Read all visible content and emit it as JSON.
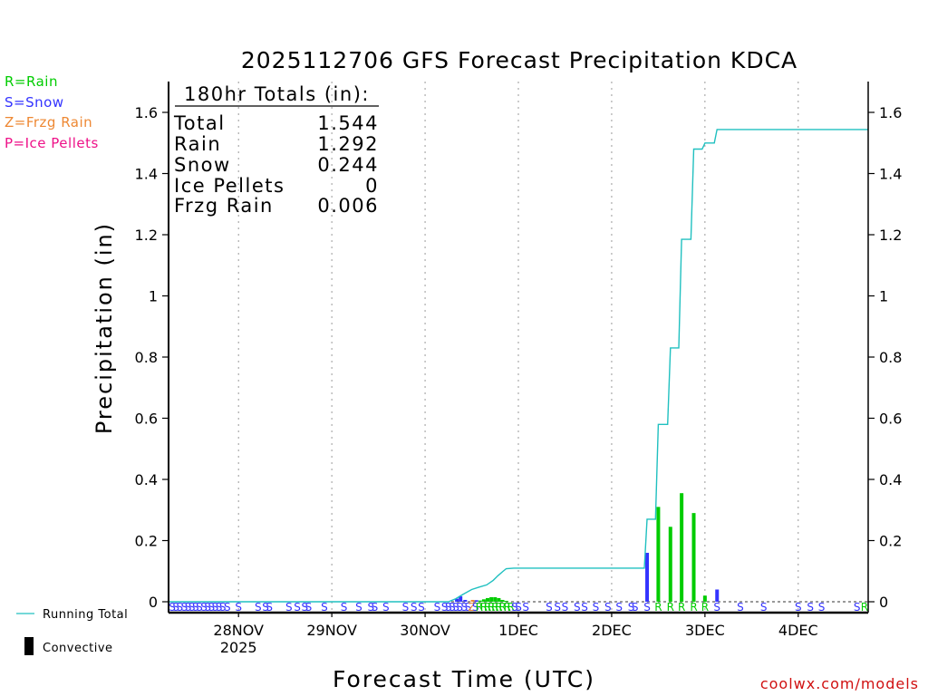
{
  "page": {
    "credit": "coolwx.com/models"
  },
  "precip_types_legend": [
    {
      "label": "R=Rain",
      "color": "#00cc00"
    },
    {
      "label": "S=Snow",
      "color": "#3333ff"
    },
    {
      "label": "Z=Frzg Rain",
      "color": "#ee8833"
    },
    {
      "label": "P=Ice Pellets",
      "color": "#ee1188"
    }
  ],
  "series_legend": {
    "running_total": {
      "label": "Running Total",
      "color": "#20c0c0"
    },
    "convective": {
      "label": "Convective",
      "color": "#000000"
    }
  },
  "totals_box": {
    "header": "180hr Totals (in):",
    "rows": [
      {
        "label": "Total",
        "value": "1.544"
      },
      {
        "label": "Rain",
        "value": "1.292"
      },
      {
        "label": "Snow",
        "value": "0.244"
      },
      {
        "label": "Ice Pellets",
        "value": "0"
      },
      {
        "label": "Frzg Rain",
        "value": "0.006"
      }
    ]
  },
  "chart_data": {
    "type": "bar",
    "title": "2025112706 GFS Forecast Precipitation KDCA",
    "xlabel": "Forecast Time (UTC)",
    "ylabel": "Precipitation (in)",
    "xlim_days": [
      0.0,
      7.5
    ],
    "ylim": [
      -0.04,
      1.7
    ],
    "yticks": [
      0,
      0.2,
      0.4,
      0.6,
      0.8,
      1,
      1.2,
      1.4,
      1.6
    ],
    "ytick_labels": [
      "0",
      "0.2",
      "0.4",
      "0.6",
      "0.8",
      "1",
      "1.2",
      "1.4",
      "1.6"
    ],
    "xticks": [
      {
        "day": 0.75,
        "label": "28NOV",
        "sublabel": "2025"
      },
      {
        "day": 1.75,
        "label": "29NOV",
        "sublabel": ""
      },
      {
        "day": 2.75,
        "label": "30NOV",
        "sublabel": ""
      },
      {
        "day": 3.75,
        "label": "1DEC",
        "sublabel": ""
      },
      {
        "day": 4.75,
        "label": "2DEC",
        "sublabel": ""
      },
      {
        "day": 5.75,
        "label": "3DEC",
        "sublabel": ""
      },
      {
        "day": 6.75,
        "label": "4DEC",
        "sublabel": ""
      }
    ],
    "grid": "vertical dotted",
    "bars": [
      {
        "day": 3.09,
        "value": 0.01,
        "type": "S"
      },
      {
        "day": 3.13,
        "value": 0.018,
        "type": "S"
      },
      {
        "day": 3.18,
        "value": 0.006,
        "type": "S"
      },
      {
        "day": 3.26,
        "value": 0.006,
        "type": "Z"
      },
      {
        "day": 3.3,
        "value": 0.005,
        "type": "S"
      },
      {
        "day": 3.34,
        "value": 0.004,
        "type": "R"
      },
      {
        "day": 3.38,
        "value": 0.008,
        "type": "R"
      },
      {
        "day": 3.42,
        "value": 0.012,
        "type": "R"
      },
      {
        "day": 3.46,
        "value": 0.015,
        "type": "R"
      },
      {
        "day": 3.5,
        "value": 0.015,
        "type": "R"
      },
      {
        "day": 3.54,
        "value": 0.012,
        "type": "R"
      },
      {
        "day": 3.58,
        "value": 0.006,
        "type": "R"
      },
      {
        "day": 3.62,
        "value": 0.003,
        "type": "R"
      },
      {
        "day": 5.13,
        "value": 0.16,
        "type": "S"
      },
      {
        "day": 5.25,
        "value": 0.31,
        "type": "R"
      },
      {
        "day": 5.38,
        "value": 0.245,
        "type": "R"
      },
      {
        "day": 5.5,
        "value": 0.355,
        "type": "R"
      },
      {
        "day": 5.63,
        "value": 0.29,
        "type": "R"
      },
      {
        "day": 5.75,
        "value": 0.02,
        "type": "R"
      },
      {
        "day": 5.88,
        "value": 0.04,
        "type": "S"
      }
    ],
    "running_total": {
      "x": [
        0.0,
        3.0,
        3.08,
        3.16,
        3.25,
        3.33,
        3.41,
        3.48,
        3.53,
        3.58,
        3.62,
        3.7,
        5.1,
        5.13,
        5.22,
        5.25,
        5.35,
        5.38,
        5.47,
        5.5,
        5.6,
        5.63,
        5.72,
        5.75,
        5.85,
        5.88,
        7.5
      ],
      "values": [
        0.0,
        0.0,
        0.01,
        0.025,
        0.04,
        0.048,
        0.055,
        0.07,
        0.085,
        0.098,
        0.108,
        0.11,
        0.11,
        0.27,
        0.27,
        0.58,
        0.58,
        0.83,
        0.83,
        1.185,
        1.185,
        1.48,
        1.48,
        1.5,
        1.5,
        1.544,
        1.544
      ]
    },
    "type_strip": [
      {
        "day": 0.04,
        "type": "S"
      },
      {
        "day": 0.08,
        "type": "S"
      },
      {
        "day": 0.12,
        "type": "S"
      },
      {
        "day": 0.17,
        "type": "S"
      },
      {
        "day": 0.21,
        "type": "S"
      },
      {
        "day": 0.25,
        "type": "S"
      },
      {
        "day": 0.29,
        "type": "S"
      },
      {
        "day": 0.33,
        "type": "S"
      },
      {
        "day": 0.38,
        "type": "S"
      },
      {
        "day": 0.42,
        "type": "S"
      },
      {
        "day": 0.46,
        "type": "S"
      },
      {
        "day": 0.5,
        "type": "S"
      },
      {
        "day": 0.54,
        "type": "S"
      },
      {
        "day": 0.58,
        "type": "S"
      },
      {
        "day": 0.63,
        "type": "S"
      },
      {
        "day": 0.75,
        "type": "S"
      },
      {
        "day": 0.96,
        "type": "S"
      },
      {
        "day": 1.04,
        "type": "S"
      },
      {
        "day": 1.08,
        "type": "S"
      },
      {
        "day": 1.29,
        "type": "S"
      },
      {
        "day": 1.38,
        "type": "S"
      },
      {
        "day": 1.46,
        "type": "S"
      },
      {
        "day": 1.5,
        "type": "S"
      },
      {
        "day": 1.67,
        "type": "S"
      },
      {
        "day": 1.88,
        "type": "S"
      },
      {
        "day": 2.04,
        "type": "S"
      },
      {
        "day": 2.17,
        "type": "S"
      },
      {
        "day": 2.21,
        "type": "S"
      },
      {
        "day": 2.33,
        "type": "S"
      },
      {
        "day": 2.54,
        "type": "S"
      },
      {
        "day": 2.63,
        "type": "S"
      },
      {
        "day": 2.71,
        "type": "S"
      },
      {
        "day": 2.88,
        "type": "S"
      },
      {
        "day": 2.96,
        "type": "S"
      },
      {
        "day": 3.0,
        "type": "S"
      },
      {
        "day": 3.04,
        "type": "S"
      },
      {
        "day": 3.08,
        "type": "S"
      },
      {
        "day": 3.12,
        "type": "S"
      },
      {
        "day": 3.17,
        "type": "S"
      },
      {
        "day": 3.21,
        "type": "S"
      },
      {
        "day": 3.25,
        "type": "Z"
      },
      {
        "day": 3.29,
        "type": "S"
      },
      {
        "day": 3.33,
        "type": "R"
      },
      {
        "day": 3.38,
        "type": "R"
      },
      {
        "day": 3.42,
        "type": "R"
      },
      {
        "day": 3.46,
        "type": "R"
      },
      {
        "day": 3.5,
        "type": "R"
      },
      {
        "day": 3.54,
        "type": "R"
      },
      {
        "day": 3.58,
        "type": "R"
      },
      {
        "day": 3.63,
        "type": "R"
      },
      {
        "day": 3.67,
        "type": "R"
      },
      {
        "day": 3.71,
        "type": "S"
      },
      {
        "day": 3.75,
        "type": "S"
      },
      {
        "day": 3.83,
        "type": "S"
      },
      {
        "day": 4.08,
        "type": "S"
      },
      {
        "day": 4.17,
        "type": "S"
      },
      {
        "day": 4.25,
        "type": "S"
      },
      {
        "day": 4.38,
        "type": "S"
      },
      {
        "day": 4.46,
        "type": "S"
      },
      {
        "day": 4.58,
        "type": "S"
      },
      {
        "day": 4.71,
        "type": "S"
      },
      {
        "day": 4.83,
        "type": "S"
      },
      {
        "day": 4.96,
        "type": "S"
      },
      {
        "day": 5.0,
        "type": "S"
      },
      {
        "day": 5.13,
        "type": "S"
      },
      {
        "day": 5.25,
        "type": "R"
      },
      {
        "day": 5.38,
        "type": "R"
      },
      {
        "day": 5.5,
        "type": "R"
      },
      {
        "day": 5.63,
        "type": "R"
      },
      {
        "day": 5.75,
        "type": "R"
      },
      {
        "day": 5.88,
        "type": "S"
      },
      {
        "day": 6.13,
        "type": "S"
      },
      {
        "day": 6.38,
        "type": "S"
      },
      {
        "day": 6.75,
        "type": "S"
      },
      {
        "day": 6.88,
        "type": "S"
      },
      {
        "day": 7.0,
        "type": "S"
      },
      {
        "day": 7.38,
        "type": "S"
      },
      {
        "day": 7.46,
        "type": "R"
      }
    ],
    "type_colors": {
      "R": "#00cc00",
      "S": "#3333ff",
      "Z": "#ee8833",
      "P": "#ee1188"
    }
  }
}
